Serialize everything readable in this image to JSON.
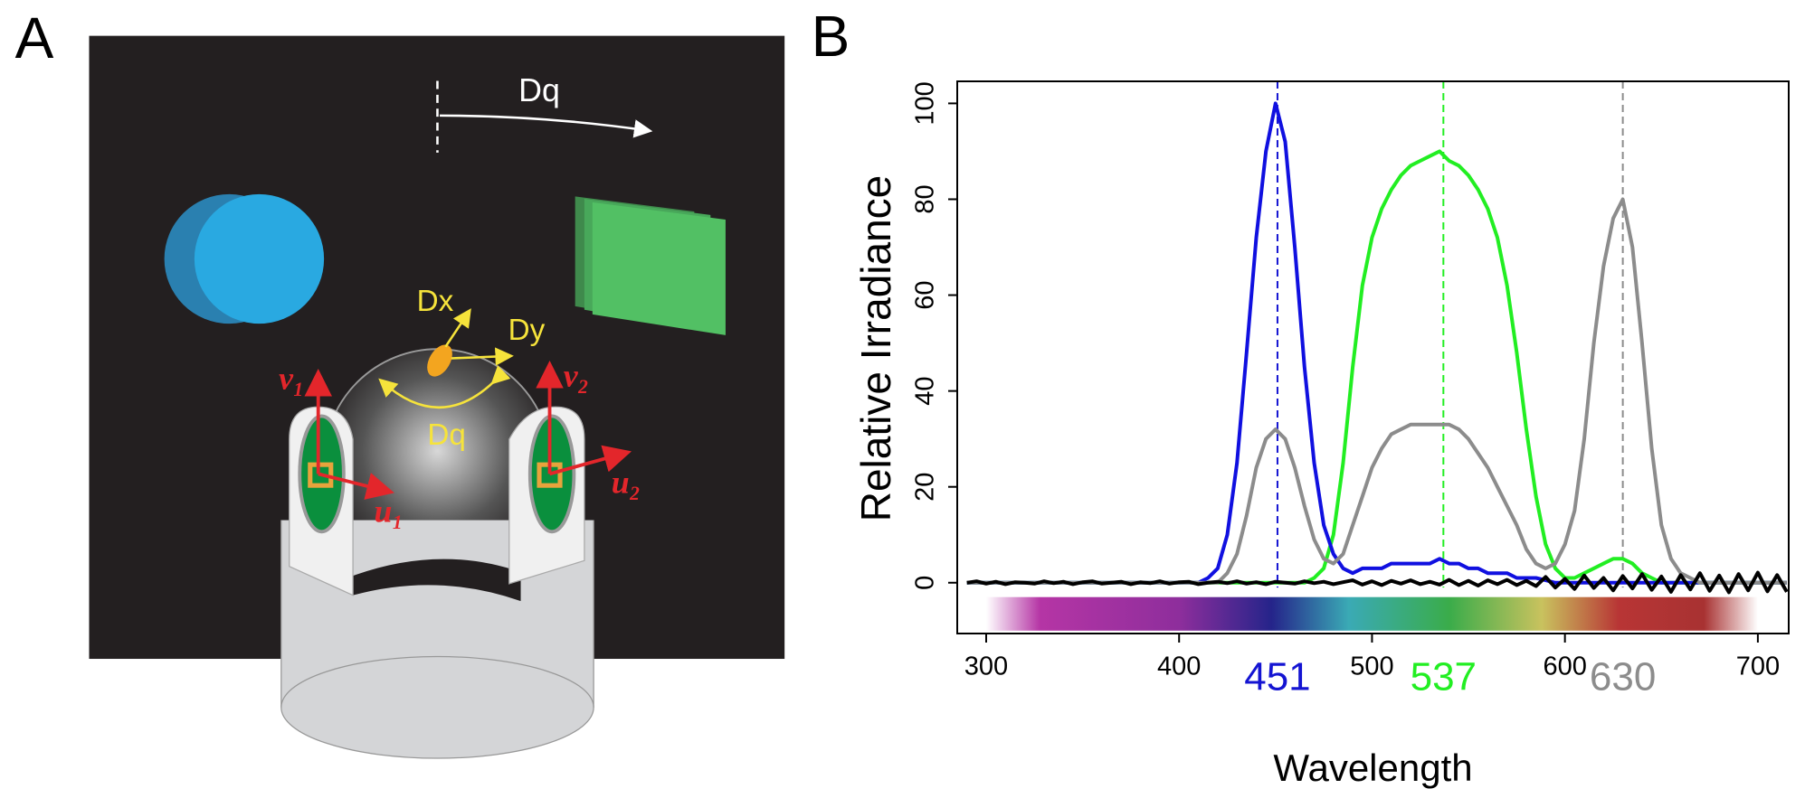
{
  "panel_labels": [
    "A",
    "B"
  ],
  "diagram": {
    "arena_rotation": "Dq",
    "ball_rotation": "Dq",
    "ball_x": "Dx",
    "ball_y": "Dy",
    "sensor_labels": [
      "v₁",
      "u₁",
      "v₂",
      "u₂"
    ]
  },
  "chart_data": {
    "type": "line",
    "xlabel": "Wavelength",
    "ylabel": "Relative Irradiance",
    "xlim": [
      285,
      716
    ],
    "ylim": [
      -10.6,
      104.6
    ],
    "xticks": [
      300,
      400,
      500,
      600,
      700
    ],
    "yticks": [
      0,
      20,
      40,
      60,
      80,
      100
    ],
    "x": [
      290,
      295,
      300,
      305,
      310,
      315,
      320,
      325,
      330,
      335,
      340,
      345,
      350,
      355,
      360,
      365,
      370,
      375,
      380,
      385,
      390,
      395,
      400,
      405,
      410,
      415,
      420,
      425,
      430,
      435,
      440,
      445,
      450,
      455,
      460,
      465,
      470,
      475,
      480,
      485,
      490,
      495,
      500,
      505,
      510,
      515,
      520,
      525,
      530,
      535,
      540,
      545,
      550,
      555,
      560,
      565,
      570,
      575,
      580,
      585,
      590,
      595,
      600,
      605,
      610,
      615,
      620,
      625,
      630,
      635,
      640,
      645,
      650,
      655,
      660,
      665,
      670,
      675,
      680,
      685,
      690,
      695,
      700,
      705,
      710,
      715
    ],
    "series": [
      {
        "color": "#22ee22",
        "values": [
          0,
          0,
          0,
          0,
          0,
          0,
          0,
          0,
          0,
          0,
          0,
          0,
          0,
          0,
          0,
          0,
          0,
          0,
          0,
          0,
          0,
          0,
          0,
          0,
          0,
          0,
          0,
          0,
          0,
          0,
          0,
          0,
          0,
          0,
          0,
          0,
          1,
          3,
          10,
          25,
          45,
          62,
          72,
          78,
          82,
          85,
          87,
          88,
          89,
          90,
          88,
          87,
          85,
          82,
          78,
          72,
          62,
          48,
          32,
          18,
          8,
          3,
          1,
          1,
          2,
          3,
          4,
          5,
          5,
          4,
          2,
          1,
          0,
          0,
          0,
          0,
          0,
          0,
          0,
          0,
          0,
          0,
          0,
          0,
          0,
          0
        ]
      },
      {
        "color": "#1010e0",
        "values": [
          0,
          0,
          0,
          0,
          0,
          0,
          0,
          0,
          0,
          0,
          0,
          0,
          0,
          0,
          0,
          0,
          0,
          0,
          0,
          0,
          0,
          0,
          0,
          0,
          0,
          1,
          3,
          10,
          25,
          48,
          72,
          90,
          100,
          92,
          70,
          45,
          25,
          12,
          6,
          3,
          2,
          3,
          3,
          3,
          4,
          4,
          4,
          4,
          4,
          5,
          4,
          4,
          3,
          3,
          2,
          2,
          2,
          1,
          1,
          1,
          0.5,
          0,
          0,
          0,
          0,
          0,
          0,
          0,
          0,
          0,
          0,
          0,
          0,
          0,
          0,
          0,
          0,
          0,
          0,
          0,
          0,
          0,
          0,
          0,
          0,
          0
        ]
      },
      {
        "color": "#8c8c8c",
        "values": [
          0,
          0,
          0,
          0,
          0,
          0,
          0,
          0,
          0,
          0,
          0,
          0,
          0,
          0,
          0,
          0,
          0,
          0,
          0,
          0,
          0,
          0,
          0,
          0,
          0,
          0,
          0,
          2,
          6,
          14,
          24,
          30,
          32,
          30,
          24,
          16,
          9,
          5,
          4,
          6,
          12,
          18,
          24,
          28,
          31,
          32,
          33,
          33,
          33,
          33,
          33,
          32,
          30,
          27,
          24,
          20,
          16,
          12,
          7,
          4,
          3,
          4,
          8,
          15,
          30,
          50,
          66,
          76,
          80,
          70,
          50,
          28,
          12,
          5,
          2,
          1,
          0,
          0,
          0,
          0,
          0,
          0,
          0,
          0,
          0,
          0
        ]
      },
      {
        "color": "#000000",
        "values": [
          0,
          0.3,
          -0.2,
          0.2,
          -0.3,
          0.1,
          0,
          -0.2,
          0.3,
          -0.1,
          0.2,
          -0.3,
          0.1,
          0.3,
          -0.2,
          0,
          0.2,
          -0.3,
          0.1,
          -0.1,
          0.3,
          -0.2,
          0.1,
          0.2,
          -0.3,
          0,
          0.2,
          -0.1,
          0.3,
          -0.2,
          0.1,
          -0.3,
          0.2,
          0,
          -0.2,
          0.3,
          -0.1,
          0.2,
          -0.3,
          0.1,
          0.5,
          -0.4,
          0.3,
          -0.5,
          0.4,
          -0.2,
          0.5,
          -0.3,
          0.2,
          -0.4,
          0.6,
          -0.5,
          0.4,
          -0.6,
          0.5,
          -0.3,
          0.6,
          -0.5,
          0.4,
          -0.7,
          1.2,
          -1,
          0.8,
          -1.3,
          1.5,
          -1.1,
          1,
          -1.6,
          1.4,
          -1.2,
          1.8,
          -1.5,
          1.3,
          -1.9,
          1.6,
          -1.4,
          2,
          -1.7,
          1.5,
          -2,
          1.8,
          -1.6,
          2.1,
          -1.8,
          1.6,
          -1.9
        ]
      }
    ],
    "markers": [
      {
        "x": 451,
        "color": "#1414d2"
      },
      {
        "x": 537,
        "color": "#22ee22"
      },
      {
        "x": 630,
        "color": "#8c8c8c"
      }
    ]
  }
}
